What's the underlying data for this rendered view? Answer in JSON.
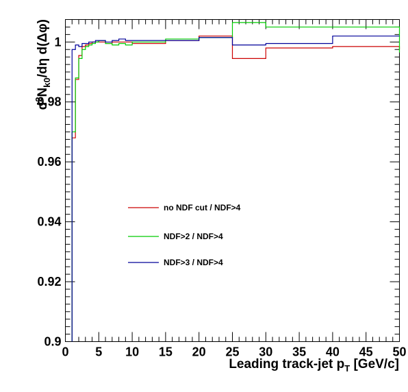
{
  "chart_data": {
    "type": "line",
    "title": "",
    "xlabel_main": "Leading track-jet p",
    "xlabel_sub": "T",
    "xlabel_unit": " [GeV/c]",
    "ylabel_d": "d",
    "ylabel_sup": "2",
    "ylabel_n": "N",
    "ylabel_sub": "k0",
    "ylabel_rest": "/dη d(Δφ)",
    "xlim": [
      0,
      50
    ],
    "ylim": [
      0.9,
      1.0075
    ],
    "x_ticks": [
      0,
      5,
      10,
      15,
      20,
      25,
      30,
      35,
      40,
      45,
      50
    ],
    "x_tick_labels": [
      "0",
      "5",
      "10",
      "15",
      "20",
      "25",
      "30",
      "35",
      "40",
      "45",
      "50"
    ],
    "y_ticks": [
      0.9,
      0.92,
      0.94,
      0.96,
      0.98,
      1.0
    ],
    "y_tick_labels": [
      "0.9",
      "0.92",
      "0.94",
      "0.96",
      "0.98",
      "1"
    ],
    "grid": false,
    "legend_placement": "center-left",
    "bin_edges": [
      1,
      1.5,
      2,
      2.5,
      3,
      3.5,
      4,
      4.5,
      5,
      6,
      7,
      8,
      9,
      10,
      12,
      15,
      20,
      25,
      30,
      40,
      50
    ],
    "series": [
      {
        "name": "no NDF cut / NDF>4",
        "color": "#cc0000",
        "values": [
          0.968,
          0.9875,
          0.9955,
          0.9985,
          0.999,
          0.9995,
          1.0,
          1.0,
          1.0,
          0.9995,
          1.0,
          1.0,
          1.0,
          0.9995,
          0.9995,
          1.0005,
          1.002,
          0.9945,
          0.998,
          0.9985,
          0.9975
        ]
      },
      {
        "name": "NDF>2 / NDF>4",
        "color": "#00cc00",
        "values": [
          0.97,
          0.988,
          0.9945,
          0.9975,
          0.9985,
          0.999,
          0.9995,
          1.0,
          1.0005,
          0.9995,
          0.999,
          0.9995,
          0.999,
          1.0,
          1.0,
          1.001,
          1.0015,
          1.0065,
          1.005,
          1.005,
          0.9965
        ]
      },
      {
        "name": "NDF>3 / NDF>4",
        "color": "#000099",
        "values": [
          0.9975,
          0.999,
          0.9985,
          0.9995,
          0.9995,
          1.0,
          1.0,
          1.0005,
          1.0005,
          1.0,
          1.0005,
          1.001,
          1.0005,
          1.0005,
          1.0005,
          1.0005,
          1.0015,
          0.999,
          0.9995,
          1.002,
          1.002
        ]
      }
    ]
  }
}
